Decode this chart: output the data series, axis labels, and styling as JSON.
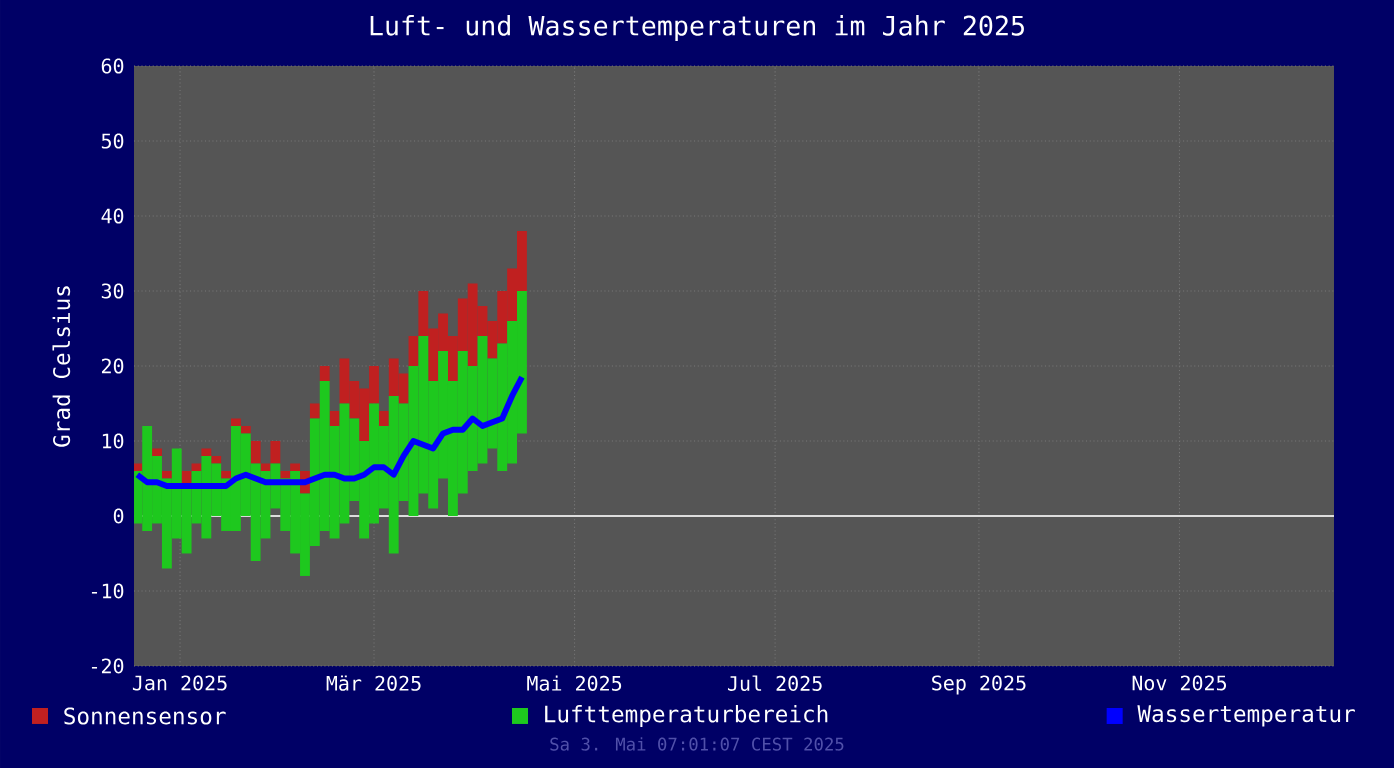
{
  "chart_data": {
    "type": "bar",
    "title": "Luft- und Wassertemperaturen im Jahr 2025",
    "ylabel": "Grad Celsius",
    "x": [
      "2025-01-02",
      "2025-01-05",
      "2025-01-08",
      "2025-01-11",
      "2025-01-14",
      "2025-01-17",
      "2025-01-20",
      "2025-01-23",
      "2025-01-26",
      "2025-01-29",
      "2025-02-01",
      "2025-02-04",
      "2025-02-07",
      "2025-02-10",
      "2025-02-13",
      "2025-02-16",
      "2025-02-19",
      "2025-02-22",
      "2025-02-25",
      "2025-02-28",
      "2025-03-03",
      "2025-03-06",
      "2025-03-09",
      "2025-03-12",
      "2025-03-15",
      "2025-03-18",
      "2025-03-21",
      "2025-03-24",
      "2025-03-27",
      "2025-03-30",
      "2025-04-02",
      "2025-04-05",
      "2025-04-08",
      "2025-04-11",
      "2025-04-14",
      "2025-04-17",
      "2025-04-20",
      "2025-04-23",
      "2025-04-26",
      "2025-04-29"
    ],
    "series": [
      {
        "name": "Sonnensensor",
        "color": "#c02020",
        "base": [
          6,
          null,
          8,
          5,
          null,
          4,
          6,
          8,
          7,
          5,
          12,
          11,
          7,
          6,
          7,
          5,
          6,
          3,
          13,
          18,
          12,
          15,
          13,
          10,
          15,
          12,
          16,
          15,
          20,
          24,
          18,
          22,
          18,
          22,
          20,
          24,
          21,
          23,
          26,
          30
        ],
        "values": [
          1,
          null,
          1,
          1,
          null,
          2,
          1,
          1,
          1,
          1,
          1,
          1,
          3,
          1,
          3,
          1,
          1,
          3,
          2,
          2,
          2,
          6,
          5,
          7,
          5,
          2,
          5,
          4,
          4,
          6,
          7,
          5,
          6,
          7,
          11,
          4,
          5,
          7,
          7,
          8
        ]
      },
      {
        "name": "Lufttemperaturbereich",
        "color": "#1ec81e",
        "base": [
          -1,
          -2,
          -1,
          -7,
          -3,
          -5,
          -1,
          -3,
          0,
          -2,
          -2,
          0,
          -6,
          -3,
          1,
          -2,
          -5,
          -8,
          -4,
          -2,
          -3,
          -1,
          2,
          -3,
          -1,
          1,
          -5,
          2,
          0,
          3,
          1,
          5,
          0,
          3,
          6,
          7,
          9,
          6,
          7,
          11
        ],
        "values": [
          7,
          14,
          9,
          12,
          12,
          9,
          7,
          11,
          7,
          7,
          14,
          11,
          13,
          9,
          6,
          7,
          11,
          11,
          17,
          20,
          15,
          16,
          11,
          13,
          16,
          11,
          21,
          13,
          20,
          21,
          17,
          17,
          18,
          19,
          14,
          17,
          12,
          17,
          19,
          19
        ]
      },
      {
        "name": "Wassertemperatur",
        "type": "line",
        "color": "#0000ff",
        "values": [
          5.5,
          4.5,
          4.5,
          4,
          4,
          4,
          4,
          4,
          4,
          4,
          5,
          5.5,
          5,
          4.5,
          4.5,
          4.5,
          4.5,
          4.5,
          5,
          5.5,
          5.5,
          5,
          5,
          5.5,
          6.5,
          6.5,
          5.5,
          8,
          10,
          9.5,
          9,
          11,
          11.5,
          11.5,
          13,
          12,
          12.5,
          13,
          16,
          18.5
        ]
      }
    ],
    "xlim": [
      "2025-01-01",
      "2026-01-01"
    ],
    "xticks": [
      {
        "value": "2025-01-15",
        "label": "Jan 2025"
      },
      {
        "value": "2025-03-15",
        "label": "Mär 2025"
      },
      {
        "value": "2025-05-15",
        "label": "Mai 2025"
      },
      {
        "value": "2025-07-15",
        "label": "Jul 2025"
      },
      {
        "value": "2025-09-15",
        "label": "Sep 2025"
      },
      {
        "value": "2025-11-15",
        "label": "Nov 2025"
      }
    ],
    "ylim": [
      -20,
      60
    ],
    "yticks": [
      -20,
      -10,
      0,
      10,
      20,
      30,
      40,
      50,
      60
    ],
    "ref_lines": [
      {
        "axis": "y",
        "value": 0,
        "color": "#dddddd"
      }
    ],
    "grid": true,
    "legend": "bottom",
    "marker": "none",
    "line_style": "solid",
    "annotations": [
      "Sa 3. Mai 07:01:07 CEST 2025"
    ]
  }
}
